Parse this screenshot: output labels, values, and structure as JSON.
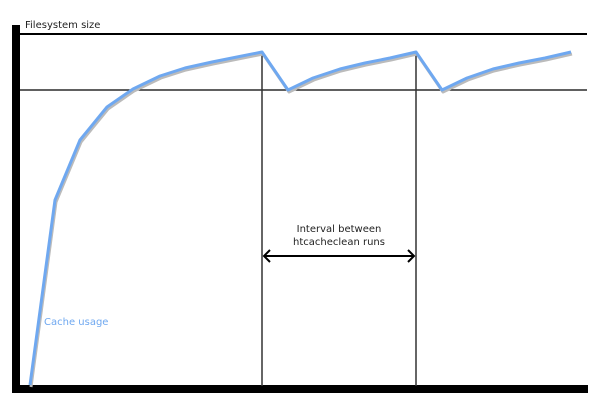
{
  "diagram": {
    "y_axis_label": "Filesystem size",
    "curve_label": "Cache usage",
    "interval_label_line1": "Interval between",
    "interval_label_line2": "htcacheclean runs",
    "colors": {
      "curve": "#6fa8f0",
      "axis": "#000000",
      "curve_label": "#6fa8f0"
    }
  }
}
